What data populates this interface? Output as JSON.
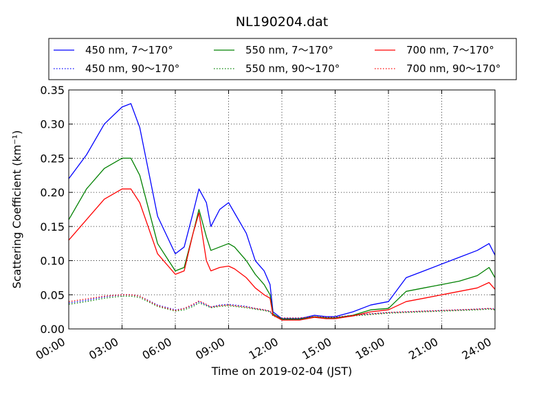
{
  "chart_data": {
    "type": "line",
    "title": "NL190204.dat",
    "xlabel": "Time on 2019-02-04 (JST)",
    "ylabel": "Scattering Coefficient (km⁻¹)",
    "xlim": [
      "00:00",
      "24:00"
    ],
    "ylim": [
      0,
      0.35
    ],
    "x_ticks": [
      "00:00",
      "03:00",
      "06:00",
      "09:00",
      "12:00",
      "15:00",
      "18:00",
      "21:00",
      "24:00"
    ],
    "y_ticks": [
      "0.00",
      "0.05",
      "0.10",
      "0.15",
      "0.20",
      "0.25",
      "0.30",
      "0.35"
    ],
    "grid": true,
    "legend_position": "top",
    "x": [
      "00:00",
      "01:00",
      "02:00",
      "03:00",
      "03:30",
      "04:00",
      "05:00",
      "06:00",
      "06:30",
      "07:00",
      "07:20",
      "07:45",
      "08:00",
      "08:30",
      "09:00",
      "09:20",
      "10:00",
      "10:30",
      "11:00",
      "11:20",
      "11:30",
      "12:00",
      "13:00",
      "13:50",
      "14:30",
      "15:00",
      "16:00",
      "17:00",
      "18:00",
      "19:00",
      "20:00",
      "21:00",
      "22:00",
      "23:00",
      "23:40",
      "24:00"
    ],
    "series": [
      {
        "name": "450 nm, 7～170°",
        "color": "#0000ff",
        "style": "solid",
        "values": [
          0.22,
          0.255,
          0.3,
          0.325,
          0.33,
          0.295,
          0.165,
          0.11,
          0.12,
          0.17,
          0.205,
          0.185,
          0.15,
          0.175,
          0.185,
          0.17,
          0.14,
          0.1,
          0.085,
          0.065,
          0.025,
          0.015,
          0.015,
          0.02,
          0.018,
          0.018,
          0.025,
          0.035,
          0.04,
          0.075,
          0.085,
          0.095,
          0.105,
          0.115,
          0.125,
          0.108
        ]
      },
      {
        "name": "450 nm, 90～170°",
        "color": "#0000ff",
        "style": "dotted",
        "values": [
          0.038,
          0.042,
          0.047,
          0.05,
          0.05,
          0.048,
          0.035,
          0.028,
          0.03,
          0.035,
          0.04,
          0.035,
          0.032,
          0.035,
          0.036,
          0.035,
          0.033,
          0.03,
          0.028,
          0.026,
          0.02,
          0.016,
          0.016,
          0.018,
          0.017,
          0.017,
          0.02,
          0.022,
          0.024,
          0.025,
          0.026,
          0.027,
          0.028,
          0.029,
          0.03,
          0.029
        ]
      },
      {
        "name": "550 nm, 7～170°",
        "color": "#008000",
        "style": "solid",
        "values": [
          0.16,
          0.205,
          0.235,
          0.25,
          0.25,
          0.225,
          0.125,
          0.085,
          0.09,
          0.14,
          0.175,
          0.135,
          0.115,
          0.12,
          0.125,
          0.12,
          0.1,
          0.08,
          0.065,
          0.05,
          0.022,
          0.014,
          0.014,
          0.018,
          0.016,
          0.016,
          0.02,
          0.028,
          0.03,
          0.055,
          0.06,
          0.065,
          0.07,
          0.078,
          0.09,
          0.075
        ]
      },
      {
        "name": "550 nm, 90～170°",
        "color": "#008000",
        "style": "dotted",
        "values": [
          0.036,
          0.04,
          0.045,
          0.048,
          0.048,
          0.046,
          0.033,
          0.026,
          0.028,
          0.033,
          0.038,
          0.034,
          0.031,
          0.033,
          0.034,
          0.033,
          0.031,
          0.029,
          0.027,
          0.025,
          0.019,
          0.015,
          0.015,
          0.017,
          0.016,
          0.016,
          0.019,
          0.021,
          0.023,
          0.024,
          0.025,
          0.026,
          0.027,
          0.028,
          0.029,
          0.028
        ]
      },
      {
        "name": "700 nm, 7～170°",
        "color": "#ff0000",
        "style": "solid",
        "values": [
          0.13,
          0.16,
          0.19,
          0.205,
          0.205,
          0.185,
          0.11,
          0.08,
          0.085,
          0.14,
          0.17,
          0.1,
          0.085,
          0.09,
          0.092,
          0.088,
          0.075,
          0.06,
          0.05,
          0.045,
          0.02,
          0.013,
          0.013,
          0.017,
          0.015,
          0.015,
          0.019,
          0.025,
          0.028,
          0.04,
          0.045,
          0.05,
          0.055,
          0.06,
          0.068,
          0.058
        ]
      },
      {
        "name": "700 nm, 90～170°",
        "color": "#ff0000",
        "style": "dotted",
        "values": [
          0.04,
          0.044,
          0.048,
          0.05,
          0.05,
          0.048,
          0.034,
          0.027,
          0.03,
          0.036,
          0.041,
          0.036,
          0.032,
          0.034,
          0.035,
          0.034,
          0.032,
          0.03,
          0.028,
          0.026,
          0.02,
          0.016,
          0.016,
          0.018,
          0.017,
          0.017,
          0.02,
          0.022,
          0.024,
          0.025,
          0.026,
          0.027,
          0.028,
          0.029,
          0.03,
          0.029
        ]
      }
    ]
  }
}
